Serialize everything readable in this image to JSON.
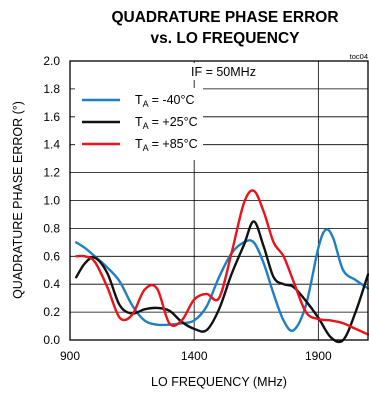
{
  "chart_data": {
    "type": "line",
    "title_line1": "QUADRATURE PHASE ERROR",
    "title_line2": "vs. LO FREQUENCY",
    "tag": "toc04",
    "annotation": "IF = 50MHz",
    "xlabel": "LO FREQUENCY (MHz)",
    "ylabel": "QUADRATURE PHASE ERROR (°)",
    "xlim": [
      900,
      2100
    ],
    "ylim": [
      0.0,
      2.0
    ],
    "x_ticks": [
      "900",
      "1400",
      "1900"
    ],
    "y_ticks": [
      "0.0",
      "0.2",
      "0.4",
      "0.6",
      "0.8",
      "1.0",
      "1.2",
      "1.4",
      "1.6",
      "1.8",
      "2.0"
    ],
    "grid": true,
    "series": [
      {
        "prefix": "T",
        "subscript": "A",
        "value": "= -40°C",
        "color": "#1f7fc4",
        "x": [
          925,
          960,
          1000,
          1050,
          1100,
          1150,
          1200,
          1250,
          1300,
          1350,
          1400,
          1450,
          1500,
          1550,
          1600,
          1640,
          1680,
          1720,
          1760,
          1800,
          1850,
          1900,
          1930,
          1960,
          2000,
          2050,
          2100
        ],
        "y": [
          0.7,
          0.66,
          0.6,
          0.52,
          0.42,
          0.25,
          0.14,
          0.11,
          0.11,
          0.12,
          0.14,
          0.24,
          0.45,
          0.62,
          0.7,
          0.7,
          0.55,
          0.33,
          0.14,
          0.07,
          0.25,
          0.66,
          0.79,
          0.73,
          0.5,
          0.43,
          0.37
        ]
      },
      {
        "prefix": "T",
        "subscript": "A",
        "value": "= +25°C",
        "color": "#111111",
        "x": [
          925,
          960,
          1000,
          1050,
          1100,
          1150,
          1200,
          1250,
          1300,
          1350,
          1400,
          1450,
          1500,
          1550,
          1600,
          1640,
          1680,
          1720,
          1760,
          1800,
          1850,
          1900,
          1950,
          2000,
          2050,
          2100
        ],
        "y": [
          0.45,
          0.55,
          0.59,
          0.48,
          0.25,
          0.19,
          0.22,
          0.23,
          0.21,
          0.13,
          0.08,
          0.07,
          0.22,
          0.47,
          0.68,
          0.85,
          0.67,
          0.45,
          0.4,
          0.38,
          0.28,
          0.16,
          0.02,
          0.0,
          0.2,
          0.47
        ]
      },
      {
        "prefix": "T",
        "subscript": "A",
        "value": "= +85°C",
        "color": "#e8141b",
        "x": [
          925,
          960,
          1000,
          1050,
          1100,
          1150,
          1200,
          1250,
          1300,
          1350,
          1400,
          1450,
          1500,
          1550,
          1600,
          1640,
          1680,
          1720,
          1760,
          1800,
          1850,
          1900,
          1950,
          2000,
          2050,
          2100
        ],
        "y": [
          0.6,
          0.6,
          0.56,
          0.38,
          0.16,
          0.18,
          0.36,
          0.37,
          0.12,
          0.14,
          0.29,
          0.33,
          0.3,
          0.62,
          0.98,
          1.07,
          0.92,
          0.7,
          0.6,
          0.42,
          0.2,
          0.15,
          0.14,
          0.12,
          0.08,
          0.04
        ]
      }
    ]
  }
}
